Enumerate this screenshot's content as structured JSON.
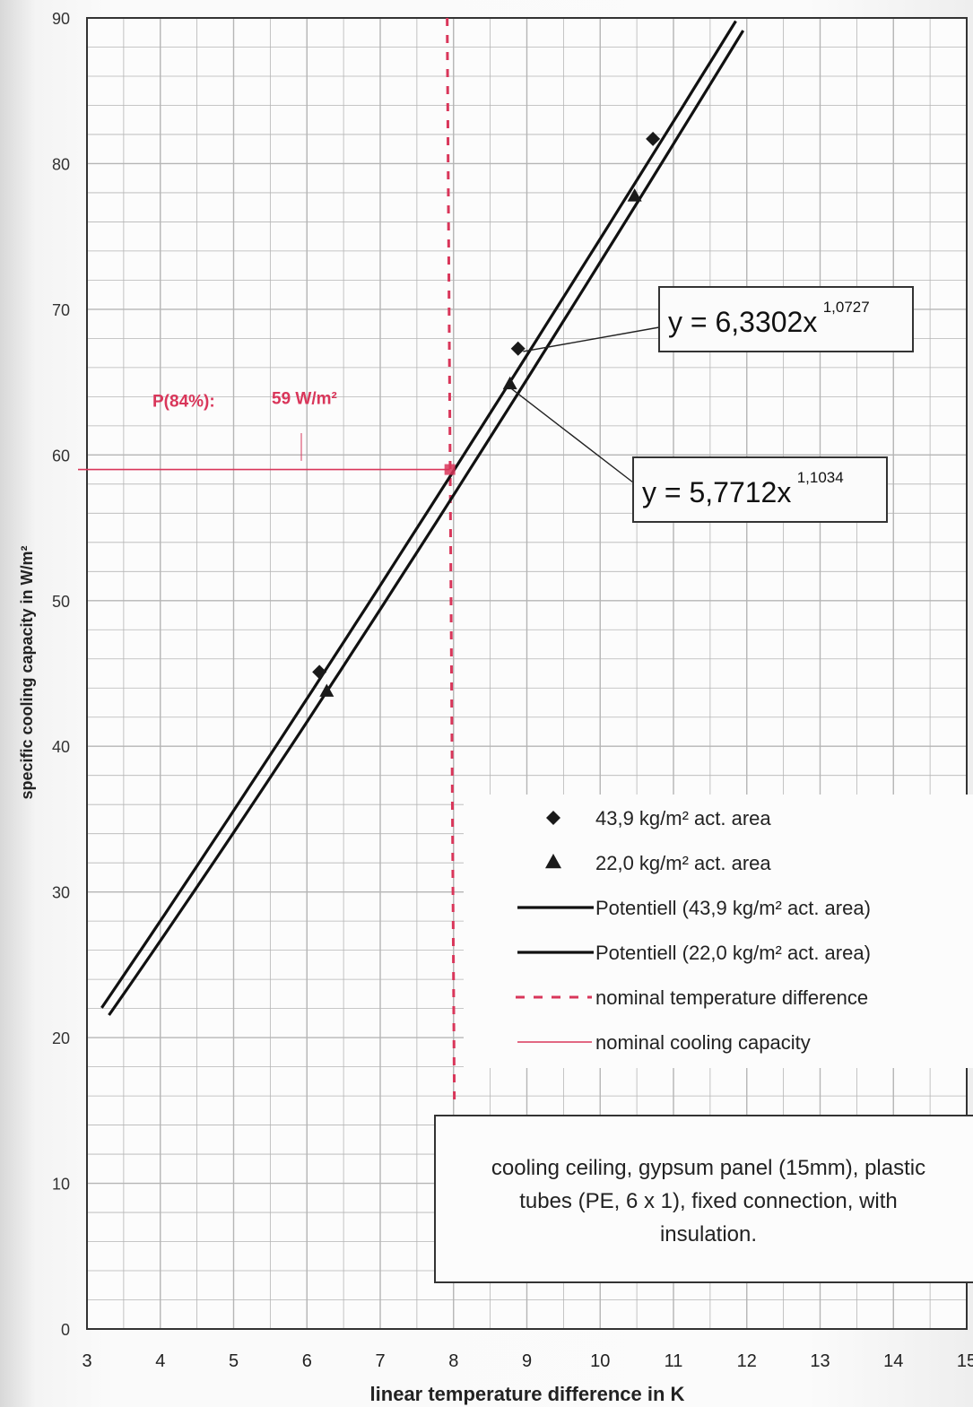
{
  "chart_data": {
    "type": "scatter",
    "xlabel": "linear temperature difference in K",
    "ylabel": "specific cooling capacity in W/m²",
    "xlim": [
      3,
      15
    ],
    "ylim": [
      0,
      90
    ],
    "x_ticks": [
      "3",
      "4",
      "5",
      "6",
      "7",
      "8",
      "9",
      "10",
      "11",
      "12",
      "13",
      "14",
      "15"
    ],
    "y_ticks": [
      "0",
      "10",
      "20",
      "30",
      "40",
      "50",
      "60",
      "70",
      "80",
      "90"
    ],
    "grid": true,
    "legend_position": "bottom-right",
    "series": [
      {
        "name": "43,9 kg/m² act. area",
        "marker": "diamond",
        "points": [
          {
            "x": 6.17,
            "y": 45.1
          },
          {
            "x": 8.88,
            "y": 67.3
          },
          {
            "x": 10.72,
            "y": 81.7
          }
        ]
      },
      {
        "name": "22,0 kg/m² act. area",
        "marker": "triangle",
        "points": [
          {
            "x": 6.27,
            "y": 43.8
          },
          {
            "x": 8.77,
            "y": 64.9
          },
          {
            "x": 10.47,
            "y": 77.8
          }
        ]
      },
      {
        "name": "Potentiell (43,9 kg/m² act. area)",
        "style": "solid-thick",
        "fit": {
          "a": 6.3302,
          "b": 1.0727,
          "x_from": 3.2,
          "x_to": 11.85
        },
        "equation": "y = 6,3302x",
        "exponent": "1,0727"
      },
      {
        "name": "Potentiell (22,0 kg/m² act. area)",
        "style": "solid-thick",
        "fit": {
          "a": 5.7712,
          "b": 1.1034,
          "x_from": 3.3,
          "x_to": 11.95
        },
        "equation": "y = 5,7712x",
        "exponent": "1,1034"
      },
      {
        "name": "nominal temperature difference",
        "style": "dashed-red",
        "x": 7.95
      },
      {
        "name": "nominal cooling capacity",
        "style": "thin-red",
        "y": 59
      }
    ],
    "annotations": {
      "nominal_label": "P(84%):",
      "nominal_value": "59 W/m²",
      "nominal_point": {
        "x": 7.95,
        "y": 59
      },
      "description": [
        "cooling ceiling, gypsum panel (15mm), plastic",
        "tubes (PE, 6 x 1), fixed connection, with",
        "insulation."
      ]
    },
    "colors": {
      "line": "#111111",
      "accent": "#d9365a",
      "grid": "#b5b5b5"
    }
  }
}
